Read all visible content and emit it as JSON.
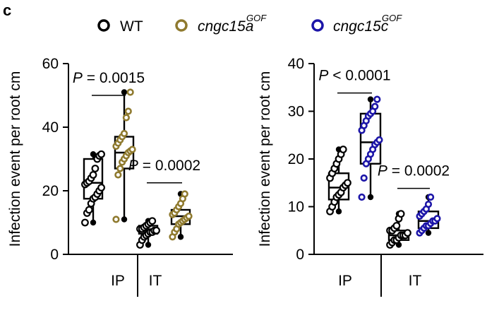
{
  "panel_letter": "c",
  "legend": [
    {
      "label": "WT",
      "base": "WT",
      "sup": "",
      "italic": false,
      "color": "#000000"
    },
    {
      "label": "cngc15aGOF",
      "base": "cngc15a",
      "sup": "GOF",
      "italic": true,
      "color": "#8f7a2f"
    },
    {
      "label": "cngc15cGOF",
      "base": "cngc15c",
      "sup": "GOF",
      "italic": true,
      "color": "#1c15a8"
    }
  ],
  "chart_data": [
    {
      "type": "box",
      "ylabel": "Infection event per root cm",
      "ylim": [
        0,
        60
      ],
      "yticks": [
        0,
        20,
        40,
        60
      ],
      "groups": [
        "IP",
        "IT"
      ],
      "series": [
        {
          "group": "IP",
          "genotype": "WT",
          "color": "#000000",
          "min": 10,
          "q1": 17.5,
          "median": 22.5,
          "q3": 30,
          "max": 31.5,
          "points": [
            10,
            13,
            14,
            16,
            17.5,
            18,
            19,
            20,
            21,
            22,
            22.5,
            23,
            24,
            25,
            27,
            30,
            31,
            31.5
          ]
        },
        {
          "group": "IP",
          "genotype": "cngc15aGOF",
          "color": "#8f7a2f",
          "min": 11,
          "q1": 27,
          "median": 32,
          "q3": 37,
          "max": 51,
          "points": [
            11,
            25,
            27,
            29,
            30,
            31,
            32,
            32.5,
            33,
            34,
            35,
            36,
            37,
            38,
            43,
            45,
            51
          ]
        },
        {
          "group": "IT",
          "genotype": "WT",
          "color": "#000000",
          "min": 3,
          "q1": 6.5,
          "median": 7.5,
          "q3": 9,
          "max": 10.5,
          "points": [
            3,
            4.5,
            5.5,
            6,
            6.5,
            7,
            7,
            7.5,
            7.5,
            8,
            8,
            8.5,
            9,
            9.5,
            10,
            10.5
          ]
        },
        {
          "group": "IT",
          "genotype": "cngc15aGOF",
          "color": "#8f7a2f",
          "min": 5.5,
          "q1": 9.5,
          "median": 12,
          "q3": 14,
          "max": 19,
          "points": [
            5.5,
            7,
            8,
            9.5,
            10,
            10.5,
            11,
            11.5,
            12,
            12.5,
            13,
            14,
            15,
            16,
            17.5,
            19
          ]
        }
      ],
      "comparisons": [
        {
          "group": "IP",
          "label": "P = 0.0015",
          "y": 54
        },
        {
          "group": "IT",
          "label": "P = 0.0002",
          "y": 26.5
        }
      ]
    },
    {
      "type": "box",
      "ylabel": "Infection event per root cm",
      "ylim": [
        0,
        40
      ],
      "yticks": [
        0,
        10,
        20,
        30,
        40
      ],
      "groups": [
        "IP",
        "IT"
      ],
      "series": [
        {
          "group": "IP",
          "genotype": "WT",
          "color": "#000000",
          "min": 9,
          "q1": 11.5,
          "median": 14,
          "q3": 17,
          "max": 22,
          "points": [
            9,
            10,
            11,
            12,
            12.5,
            13,
            14,
            14.5,
            15,
            16,
            17,
            18,
            19,
            20,
            21,
            22
          ]
        },
        {
          "group": "IP",
          "genotype": "cngc15cGOF",
          "color": "#1c15a8",
          "min": 12,
          "q1": 19,
          "median": 23.5,
          "q3": 29.5,
          "max": 32.5,
          "points": [
            12,
            16,
            19,
            20,
            21,
            22,
            23,
            23.5,
            24,
            26,
            27,
            28,
            29,
            29.5,
            30,
            31,
            32.5
          ]
        },
        {
          "group": "IT",
          "genotype": "WT",
          "color": "#000000",
          "min": 2,
          "q1": 3,
          "median": 4,
          "q3": 5,
          "max": 8.5,
          "points": [
            2,
            2.5,
            3,
            3,
            3.5,
            4,
            4,
            4,
            4.5,
            5,
            5,
            5.5,
            6,
            7.5,
            8.5
          ]
        },
        {
          "group": "IT",
          "genotype": "cngc15cGOF",
          "color": "#1c15a8",
          "min": 4.5,
          "q1": 5.5,
          "median": 7,
          "q3": 9,
          "max": 12,
          "points": [
            4.5,
            5,
            5.5,
            6,
            6,
            6.5,
            7,
            7,
            7.5,
            8,
            8.5,
            9,
            9.5,
            10.5,
            12
          ]
        }
      ],
      "comparisons": [
        {
          "group": "IP",
          "label": "P < 0.0001",
          "y": 36.5
        },
        {
          "group": "IT",
          "label": "P = 0.0002",
          "y": 16.5
        }
      ]
    }
  ]
}
